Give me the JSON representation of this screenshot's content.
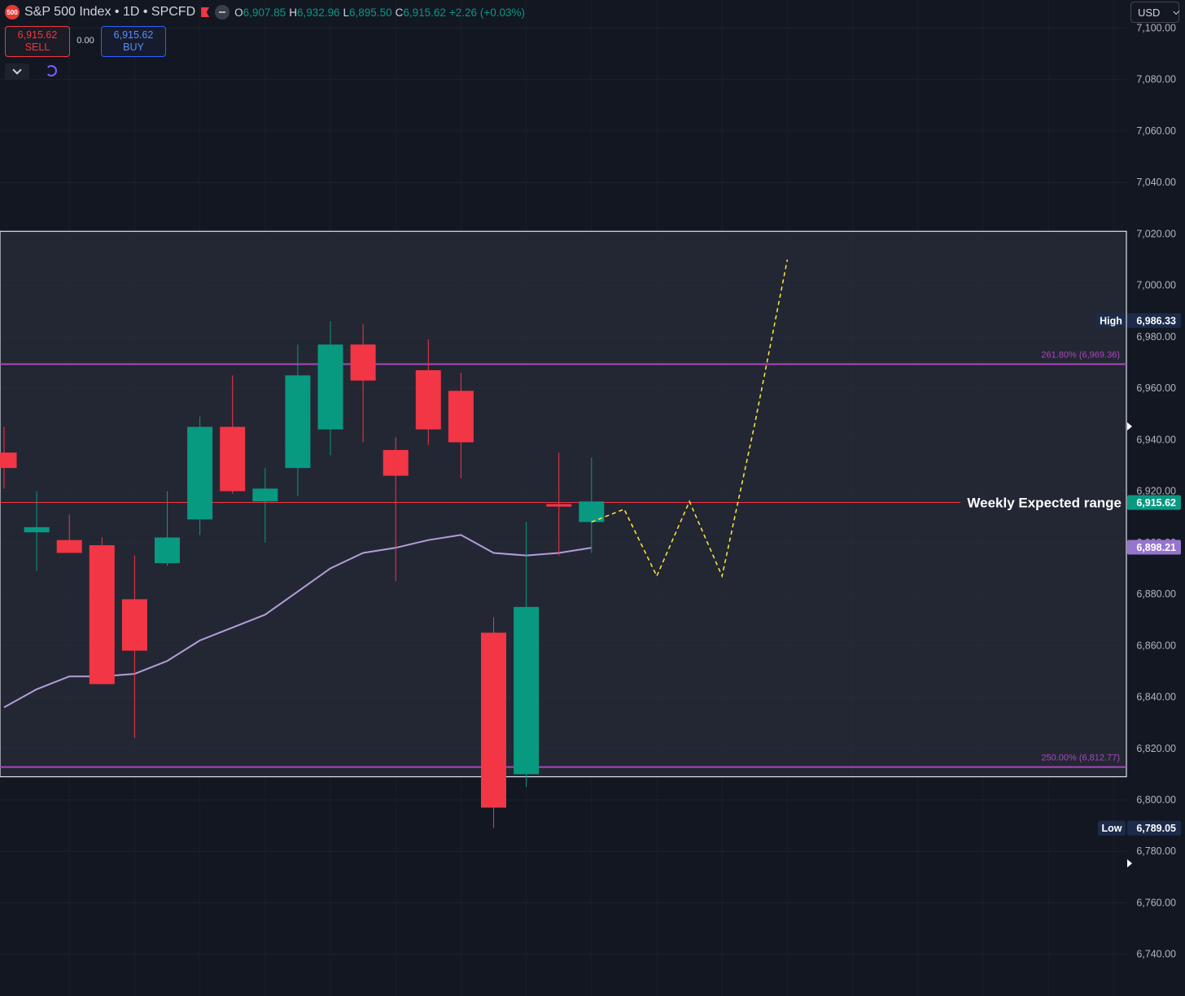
{
  "header": {
    "symbol_badge": "500",
    "title": "S&P 500 Index • 1D • SPCFD",
    "ohlc": [
      {
        "k": "O",
        "v": "6,907.85"
      },
      {
        "k": "H",
        "v": "6,932.96"
      },
      {
        "k": "L",
        "v": "6,895.50"
      },
      {
        "k": "C",
        "v": "6,915.62"
      }
    ],
    "change": "+2.26 (+0.03%)",
    "currency": "USD"
  },
  "trade": {
    "sell_price": "6,915.62",
    "sell_label": "SELL",
    "spread": "0.00",
    "buy_price": "6,915.62",
    "buy_label": "BUY"
  },
  "colors": {
    "background": "#131722",
    "up": "#089981",
    "down": "#f23645",
    "ma": "#b39ddb",
    "fib": "#ab47bc",
    "projection": "#ffeb3b",
    "range_box": "#2a2e39"
  },
  "chart_data": {
    "type": "candlestick",
    "y_range": [
      6730,
      7100
    ],
    "y_ticks": [
      "7,100.00",
      "7,080.00",
      "7,060.00",
      "7,040.00",
      "7,020.00",
      "7,000.00",
      "6,980.00",
      "6,960.00",
      "6,940.00",
      "6,920.00",
      "6,900.00",
      "6,880.00",
      "6,860.00",
      "6,840.00",
      "6,820.00",
      "6,800.00",
      "6,780.00",
      "6,760.00",
      "6,740.00"
    ],
    "candles": [
      {
        "o": 6935,
        "h": 6945,
        "l": 6921,
        "c": 6929
      },
      {
        "o": 6904,
        "h": 6920,
        "l": 6889,
        "c": 6906
      },
      {
        "o": 6901,
        "h": 6911,
        "l": 6896,
        "c": 6896
      },
      {
        "o": 6899,
        "h": 6902,
        "l": 6845,
        "c": 6845
      },
      {
        "o": 6878,
        "h": 6895,
        "l": 6824,
        "c": 6858
      },
      {
        "o": 6892,
        "h": 6920,
        "l": 6891,
        "c": 6902
      },
      {
        "o": 6909,
        "h": 6949,
        "l": 6903,
        "c": 6945
      },
      {
        "o": 6945,
        "h": 6965,
        "l": 6919,
        "c": 6920
      },
      {
        "o": 6916,
        "h": 6929,
        "l": 6900,
        "c": 6921
      },
      {
        "o": 6929,
        "h": 6977,
        "l": 6918,
        "c": 6965
      },
      {
        "o": 6944,
        "h": 6986,
        "l": 6934,
        "c": 6977
      },
      {
        "o": 6977,
        "h": 6985,
        "l": 6939,
        "c": 6963
      },
      {
        "o": 6936,
        "h": 6941,
        "l": 6885,
        "c": 6926
      },
      {
        "o": 6967,
        "h": 6979,
        "l": 6938,
        "c": 6944
      },
      {
        "o": 6959,
        "h": 6966,
        "l": 6925,
        "c": 6939
      },
      {
        "o": 6865,
        "h": 6871,
        "l": 6789,
        "c": 6797
      },
      {
        "o": 6810,
        "h": 6908,
        "l": 6805,
        "c": 6875
      },
      {
        "o": 6915,
        "h": 6935,
        "l": 6895,
        "c": 6914
      },
      {
        "o": 6908,
        "h": 6933,
        "l": 6896,
        "c": 6916
      }
    ],
    "ma_line": [
      6836,
      6843,
      6848,
      6848,
      6849,
      6854,
      6862,
      6867,
      6872,
      6881,
      6890,
      6896,
      6898,
      6901,
      6903,
      6896,
      6895,
      6896,
      6898
    ],
    "projection_path": [
      [
        18,
        6908
      ],
      [
        19,
        6913
      ],
      [
        20,
        6887
      ],
      [
        21,
        6916
      ],
      [
        22,
        6887
      ],
      [
        23,
        6946
      ],
      [
        24,
        7010
      ]
    ],
    "range_box": {
      "top": 7021,
      "bottom": 6809
    },
    "weekly_level": 6915.62,
    "fib_levels": [
      {
        "value": 6969.36,
        "label": "261.80% (6,969.36)"
      },
      {
        "value": 6812.77,
        "label": "250.00% (6,812.77)"
      }
    ],
    "annotations": {
      "weekly_range": "Weekly Expected range"
    },
    "price_tags": {
      "high_label": "High",
      "high_value": "6,986.33",
      "high_at": 6986.33,
      "last_value": "6,915.62",
      "last_at": 6915.62,
      "ma_value": "6,898.21",
      "ma_at": 6898.21,
      "low_label": "Low",
      "low_value": "6,789.05",
      "low_at": 6789.05
    }
  }
}
